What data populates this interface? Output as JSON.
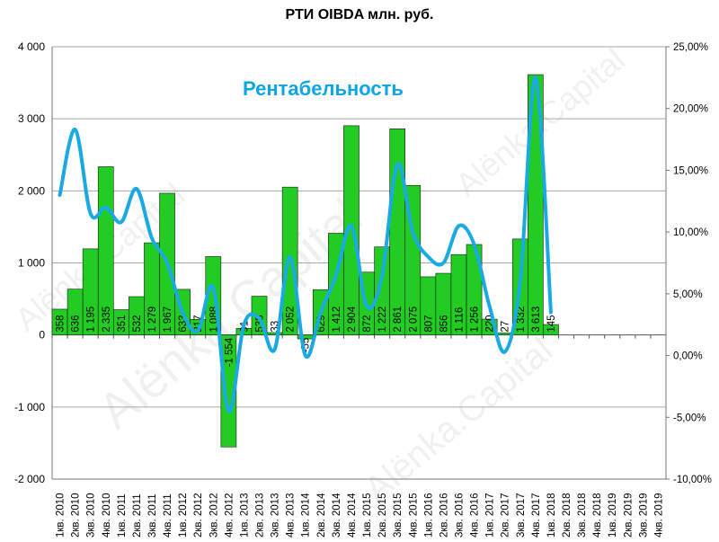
{
  "chart_data": {
    "type": "bar",
    "title": "РТИ OIBDA млн. руб.",
    "annotation": "Рентабельность",
    "categories": [
      "1кв. 2010",
      "2кв. 2010",
      "3кв. 2010",
      "4кв. 2010",
      "1кв. 2011",
      "2кв. 2011",
      "3кв. 2011",
      "4кв. 2011",
      "1кв. 2012",
      "2кв. 2012",
      "3кв. 2012",
      "4кв. 2012",
      "1кв. 2013",
      "2кв. 2013",
      "3кв. 2013",
      "4кв. 2013",
      "1кв. 2014",
      "2кв. 2014",
      "3кв. 2014",
      "4кв. 2014",
      "1кв. 2015",
      "2кв. 2015",
      "3кв. 2015",
      "4кв. 2015",
      "1кв. 2016",
      "2кв. 2016",
      "3кв. 2016",
      "4кв. 2016",
      "1кв. 2017",
      "2кв. 2017",
      "3кв. 2017",
      "4кв. 2017",
      "1кв. 2018",
      "2кв. 2018",
      "3кв. 2018",
      "4кв. 2018",
      "1кв. 2019",
      "2кв. 2019",
      "3кв. 2019",
      "4кв. 2019"
    ],
    "series": [
      {
        "values": [
          358,
          636,
          1195,
          2335,
          351,
          532,
          1279,
          1967,
          633,
          217,
          1088,
          -1554,
          91,
          538,
          33,
          2052,
          -55,
          629,
          1412,
          2904,
          872,
          1222,
          2861,
          2075,
          807,
          856,
          1116,
          1256,
          220,
          27,
          1332,
          3613,
          145,
          null,
          null,
          null,
          null,
          null,
          null,
          null
        ],
        "labels": [
          "358",
          "636",
          "1 195",
          "2 335",
          "351",
          "532",
          "1 279",
          "1 967",
          "633",
          "217",
          "1 088",
          "-1 554",
          "91",
          "538",
          "33",
          "2 052",
          "-55",
          "629",
          "1 412",
          "2 904",
          "872",
          "1 222",
          "2 861",
          "2 075",
          "807",
          "856",
          "1 116",
          "1 256",
          "220",
          "27",
          "1 332",
          "3 613",
          "145",
          "",
          "",
          "",
          "",
          "",
          "",
          ""
        ]
      },
      {
        "values": [
          13.0,
          18.3,
          11.5,
          12.0,
          10.8,
          13.5,
          9.5,
          7.5,
          3.5,
          2.0,
          5.5,
          -4.5,
          2.5,
          3.0,
          0.5,
          8.0,
          0.0,
          3.5,
          6.5,
          10.5,
          4.0,
          6.5,
          15.5,
          10.0,
          8.0,
          7.5,
          10.5,
          9.0,
          4.0,
          0.3,
          6.0,
          22.5,
          3.5,
          null,
          null,
          null,
          null,
          null,
          null,
          null
        ]
      }
    ],
    "y_left": {
      "ylim": [
        -2000,
        4000
      ],
      "ticks": [
        "-2 000",
        "-1 000",
        "0",
        "1 000",
        "2 000",
        "3 000",
        "4 000"
      ]
    },
    "y_right": {
      "ylim": [
        -10,
        25
      ],
      "ticks": [
        "-10,00%",
        "-5,00%",
        "0,00%",
        "5,00%",
        "10,00%",
        "15,00%",
        "20,00%",
        "25,00%"
      ]
    },
    "watermark": "Alёnka.Capital",
    "colors": {
      "bar": "#22cc22",
      "bar_border": "#1a1a1a",
      "line": "#19a9e3",
      "grid": "#a6a6a6",
      "overlay_text": "#0aa6e6"
    }
  }
}
